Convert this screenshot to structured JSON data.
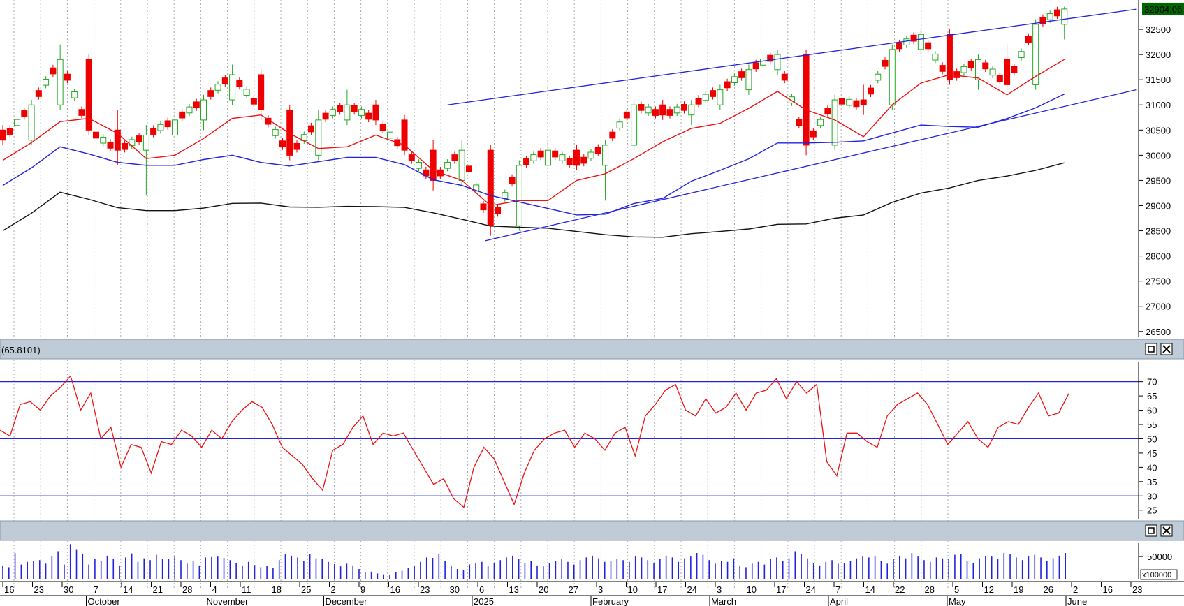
{
  "colors": {
    "up_candle": "#22aa22",
    "down_candle": "#ee0000",
    "ma_short": "#ee1111",
    "ma_mid": "#2222dd",
    "ma_long": "#111111",
    "trendline": "#2222dd",
    "rsi_line": "#ee1111",
    "rsi_level": "#2222dd",
    "volume_bar": "#2222dd",
    "last_price_bg": "#006600",
    "last_price_fg": "#ffffff",
    "pane_header_bg": "#bfcbd6",
    "grid": "#aaaaaa"
  },
  "panes": {
    "rsi_header_value": "(65.8101)",
    "maximize_icon": "maximize-icon",
    "close_icon": "close-icon"
  },
  "chart_data": [
    {
      "type": "candlestick",
      "ylim": [
        26400,
        33000
      ],
      "y_ticks": [
        "32500",
        "32000",
        "31500",
        "31000",
        "30500",
        "30000",
        "29500",
        "29000",
        "28500",
        "28000",
        "27500",
        "27000",
        "26500"
      ],
      "last_price": "32904.06",
      "grid": "vertical dotted, weekly",
      "indicators": [
        "red moving average",
        "blue moving average",
        "black moving average",
        "blue trend channel lines"
      ],
      "ohlc_weekly_approx": [
        {
          "week": "Sep 16",
          "open": 30500,
          "high": 30600,
          "low": 30200,
          "close": 30300
        },
        {
          "week": "Sep 23",
          "open": 30300,
          "high": 31100,
          "low": 30200,
          "close": 31000
        },
        {
          "week": "Sep 30",
          "open": 31000,
          "high": 32200,
          "low": 30900,
          "close": 31900
        },
        {
          "week": "Oct 7",
          "open": 31900,
          "high": 32000,
          "low": 30400,
          "close": 30500
        },
        {
          "week": "Oct 14",
          "open": 30500,
          "high": 30900,
          "low": 29800,
          "close": 30100
        },
        {
          "week": "Oct 21",
          "open": 30100,
          "high": 30600,
          "low": 29200,
          "close": 30400
        },
        {
          "week": "Oct 28",
          "open": 30400,
          "high": 31000,
          "low": 30300,
          "close": 30700
        },
        {
          "week": "Nov 4",
          "open": 30700,
          "high": 31200,
          "low": 30500,
          "close": 31100
        },
        {
          "week": "Nov 11",
          "open": 31100,
          "high": 31800,
          "low": 31000,
          "close": 31600
        },
        {
          "week": "Nov 18",
          "open": 31600,
          "high": 31700,
          "low": 30700,
          "close": 30900
        },
        {
          "week": "Nov 25",
          "open": 30900,
          "high": 31000,
          "low": 29900,
          "close": 30000
        },
        {
          "week": "Dec 2",
          "open": 30000,
          "high": 30900,
          "low": 29900,
          "close": 30700
        },
        {
          "week": "Dec 9",
          "open": 30700,
          "high": 31300,
          "low": 30600,
          "close": 31000
        },
        {
          "week": "Dec 16",
          "open": 31000,
          "high": 31100,
          "low": 30600,
          "close": 30700
        },
        {
          "week": "Dec 23",
          "open": 30700,
          "high": 30800,
          "low": 30000,
          "close": 30100
        },
        {
          "week": "Dec 30",
          "open": 30100,
          "high": 30300,
          "low": 29300,
          "close": 29500
        },
        {
          "week": "Jan 6",
          "open": 29500,
          "high": 30300,
          "low": 29400,
          "close": 30100
        },
        {
          "week": "Jan 13",
          "open": 30100,
          "high": 30200,
          "low": 28400,
          "close": 28600
        },
        {
          "week": "Jan 20",
          "open": 28600,
          "high": 29900,
          "low": 28500,
          "close": 29800
        },
        {
          "week": "Jan 27",
          "open": 29800,
          "high": 30300,
          "low": 29700,
          "close": 30100
        },
        {
          "week": "Feb 3",
          "open": 30100,
          "high": 30200,
          "low": 29700,
          "close": 29800
        },
        {
          "week": "Feb 10",
          "open": 29800,
          "high": 30300,
          "low": 29100,
          "close": 30200
        },
        {
          "week": "Feb 17",
          "open": 30200,
          "high": 31100,
          "low": 30100,
          "close": 31000
        },
        {
          "week": "Feb 24",
          "open": 31000,
          "high": 31100,
          "low": 30700,
          "close": 30800
        },
        {
          "week": "Mar 3",
          "open": 30800,
          "high": 31100,
          "low": 30600,
          "close": 31000
        },
        {
          "week": "Mar 10",
          "open": 31000,
          "high": 31400,
          "low": 30900,
          "close": 31300
        },
        {
          "week": "Mar 17",
          "open": 31300,
          "high": 31800,
          "low": 31200,
          "close": 31700
        },
        {
          "week": "Mar 24",
          "open": 31700,
          "high": 32100,
          "low": 31600,
          "close": 32000
        },
        {
          "week": "Apr 7",
          "open": 32000,
          "high": 32100,
          "low": 30000,
          "close": 30200
        },
        {
          "week": "Apr 14",
          "open": 30200,
          "high": 31200,
          "low": 30100,
          "close": 31100
        },
        {
          "week": "Apr 22",
          "open": 31100,
          "high": 31400,
          "low": 30800,
          "close": 31000
        },
        {
          "week": "Apr 28",
          "open": 31000,
          "high": 32200,
          "low": 30900,
          "close": 32100
        },
        {
          "week": "May 5",
          "open": 32100,
          "high": 32500,
          "low": 32000,
          "close": 32400
        },
        {
          "week": "May 12",
          "open": 32400,
          "high": 32500,
          "low": 31400,
          "close": 31500
        },
        {
          "week": "May 19",
          "open": 31500,
          "high": 32000,
          "low": 31300,
          "close": 31900
        },
        {
          "week": "May 26",
          "open": 31900,
          "high": 32200,
          "low": 31300,
          "close": 31400
        },
        {
          "week": "Jun 2",
          "open": 31400,
          "high": 32700,
          "low": 31300,
          "close": 32600
        },
        {
          "week": "Jun 3",
          "open": 32600,
          "high": 32950,
          "low": 32300,
          "close": 32904
        }
      ]
    },
    {
      "type": "line",
      "name": "RSI",
      "ylim": [
        22,
        77
      ],
      "levels": [
        70,
        50,
        30
      ],
      "y_ticks": [
        "70",
        "65",
        "60",
        "55",
        "50",
        "45",
        "40",
        "35",
        "30",
        "25"
      ],
      "last_value": 65.8101,
      "values_approx": [
        53,
        51,
        62,
        63,
        60,
        65,
        68,
        72,
        60,
        66,
        50,
        54,
        40,
        48,
        47,
        38,
        49,
        48,
        53,
        51,
        47,
        53,
        50,
        56,
        60,
        63,
        61,
        55,
        47,
        44,
        41,
        36,
        32,
        46,
        48,
        54,
        58,
        48,
        52,
        51,
        52,
        46,
        40,
        34,
        36,
        29,
        26,
        40,
        47,
        43,
        35,
        27,
        38,
        46,
        50,
        52,
        53,
        47,
        52,
        50,
        46,
        52,
        54,
        44,
        58,
        62,
        67,
        69,
        60,
        58,
        64,
        59,
        61,
        66,
        60,
        66,
        67,
        71,
        64,
        70,
        66,
        69,
        42,
        37,
        52,
        52,
        49,
        47,
        58,
        62,
        64,
        66,
        62,
        55,
        48,
        52,
        56,
        50,
        47,
        54,
        56,
        55,
        61,
        66,
        58,
        59,
        65.8
      ]
    },
    {
      "type": "bar",
      "name": "Volume",
      "y_ticks": [
        "50000"
      ],
      "multiplier_label": "x100000",
      "values_approx": [
        30000,
        26000,
        58000,
        32000,
        38000,
        40000,
        42000,
        34000,
        50000,
        62000,
        32000,
        78000,
        65000,
        56000,
        32000,
        44000,
        40000,
        52000,
        45000,
        30000,
        48000,
        57000,
        38000,
        46000,
        42000,
        54000,
        44000,
        45000,
        52000,
        42000,
        34000,
        40000,
        30000,
        48000,
        49000,
        50000,
        47000,
        42000,
        36000,
        30000,
        38000,
        31000,
        26000,
        29000,
        24000,
        42000,
        55000,
        52000,
        48000,
        40000,
        56000,
        46000,
        45000,
        38000,
        33000,
        28000,
        34000,
        30000,
        22000,
        14000,
        16000,
        12000,
        10000,
        8000,
        15000,
        18000,
        24000,
        30000,
        38000,
        48000,
        47000,
        55000,
        40000,
        30000,
        22000,
        20000,
        32000,
        35000,
        38000,
        28000,
        36000,
        42000,
        48000,
        52000,
        44000,
        36000,
        40000,
        30000,
        28000,
        36000,
        40000,
        44000,
        38000,
        32000,
        42000,
        48000,
        52000,
        46000,
        38000,
        40000,
        44000,
        42000,
        38000,
        50000,
        48000,
        42000,
        36000,
        44000,
        52000,
        48000,
        38000,
        46000,
        50000,
        58000,
        54000,
        42000,
        34000,
        40000,
        38000,
        46000,
        30000,
        26000,
        34000,
        38000,
        32000,
        44000,
        48000,
        40000,
        46000,
        62000,
        56000,
        46000,
        36000,
        30000,
        38000,
        42000,
        34000,
        36000,
        40000,
        46000,
        50000,
        48000,
        52000,
        40000,
        34000,
        44000,
        52000,
        46000,
        58000,
        50000,
        42000,
        38000,
        48000,
        46000,
        44000,
        54000,
        56000,
        40000,
        36000,
        46000,
        52000,
        50000,
        44000,
        58000,
        56000,
        48000,
        42000,
        50000,
        54000,
        48000,
        40000,
        46000,
        52000,
        58000
      ]
    },
    {
      "type": "axis",
      "x_day_labels": [
        "16",
        "23",
        "30",
        "7",
        "14",
        "21",
        "28",
        "4",
        "11",
        "18",
        "25",
        "2",
        "9",
        "16",
        "23",
        "30",
        "6",
        "13",
        "20",
        "27",
        "3",
        "10",
        "17",
        "24",
        "3",
        "10",
        "17",
        "24",
        "7",
        "14",
        "22",
        "28",
        "5",
        "12",
        "19",
        "26",
        "2",
        "16",
        "23"
      ],
      "x_month_labels": [
        "October",
        "November",
        "December",
        "2025",
        "February",
        "March",
        "April",
        "May",
        "June"
      ]
    }
  ]
}
